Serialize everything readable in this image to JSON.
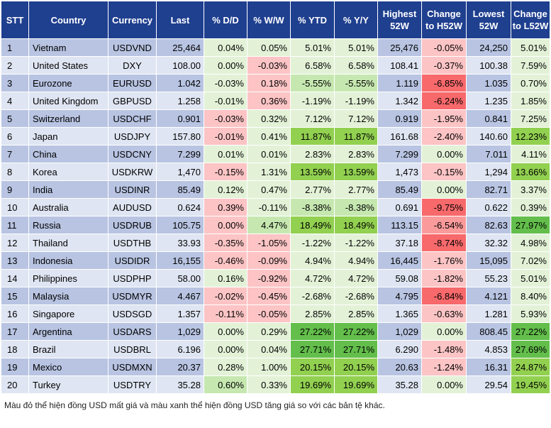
{
  "headers": [
    "STT",
    "Country",
    "Currency",
    "Last",
    "% D/D",
    "% W/W",
    "% YTD",
    "% Y/Y",
    "Highest 52W",
    "Change to H52W",
    "Lowest 52W",
    "Change to L52W"
  ],
  "colors": {
    "header_bg": "#1f3f8f",
    "row_odd": "#b8c4e2",
    "row_even": "#dfe5f2",
    "red_strong": "#f8696b",
    "red_medium": "#fa9a9b",
    "red_light": "#fcc4c5",
    "green_strong": "#63be4b",
    "green_medium": "#92d050",
    "green_light": "#c6e8b0",
    "green_pale": "#e3f2d7"
  },
  "rows": [
    {
      "cells": [
        "1",
        "Vietnam",
        "USDVND",
        "25,464",
        "0.04%",
        "0.05%",
        "5.01%",
        "5.01%",
        "25,476",
        "-0.05%",
        "24,250",
        "5.01%"
      ],
      "hl": {
        "4": "green_pale",
        "5": "green_pale",
        "6": "green_pale",
        "7": "green_pale",
        "9": "red_light",
        "11": "green_pale"
      }
    },
    {
      "cells": [
        "2",
        "United States",
        "DXY",
        "108.00",
        "0.00%",
        "-0.03%",
        "6.58%",
        "6.58%",
        "108.41",
        "-0.37%",
        "100.38",
        "7.59%"
      ],
      "hl": {
        "4": "green_pale",
        "5": "red_light",
        "6": "green_pale",
        "7": "green_pale",
        "9": "red_light",
        "11": "green_pale"
      }
    },
    {
      "cells": [
        "3",
        "Eurozone",
        "EURUSD",
        "1.042",
        "-0.03%",
        "0.18%",
        "-5.55%",
        "-5.55%",
        "1.119",
        "-6.85%",
        "1.035",
        "0.70%"
      ],
      "hl": {
        "4": "green_pale",
        "5": "red_light",
        "6": "green_light",
        "7": "green_light",
        "9": "red_strong",
        "11": "green_pale"
      }
    },
    {
      "cells": [
        "4",
        "United Kingdom",
        "GBPUSD",
        "1.258",
        "-0.01%",
        "0.36%",
        "-1.19%",
        "-1.19%",
        "1.342",
        "-6.24%",
        "1.235",
        "1.85%"
      ],
      "hl": {
        "4": "green_pale",
        "5": "red_light",
        "6": "green_pale",
        "7": "green_pale",
        "9": "red_strong",
        "11": "green_pale"
      }
    },
    {
      "cells": [
        "5",
        "Switzerland",
        "USDCHF",
        "0.901",
        "-0.03%",
        "0.32%",
        "7.12%",
        "7.12%",
        "0.919",
        "-1.95%",
        "0.841",
        "7.25%"
      ],
      "hl": {
        "4": "red_light",
        "5": "green_pale",
        "6": "green_pale",
        "7": "green_pale",
        "9": "red_light",
        "11": "green_pale"
      }
    },
    {
      "cells": [
        "6",
        "Japan",
        "USDJPY",
        "157.80",
        "-0.01%",
        "0.41%",
        "11.87%",
        "11.87%",
        "161.68",
        "-2.40%",
        "140.60",
        "12.23%"
      ],
      "hl": {
        "4": "red_light",
        "5": "green_pale",
        "6": "green_medium",
        "7": "green_medium",
        "9": "red_light",
        "11": "green_medium"
      }
    },
    {
      "cells": [
        "7",
        "China",
        "USDCNY",
        "7.299",
        "0.01%",
        "0.01%",
        "2.83%",
        "2.83%",
        "7.299",
        "0.00%",
        "7.011",
        "4.11%"
      ],
      "hl": {
        "4": "green_pale",
        "5": "green_pale",
        "6": "green_pale",
        "7": "green_pale",
        "9": "green_pale",
        "11": "green_pale"
      }
    },
    {
      "cells": [
        "8",
        "Korea",
        "USDKRW",
        "1,470",
        "-0.15%",
        "1.31%",
        "13.59%",
        "13.59%",
        "1,473",
        "-0.15%",
        "1,294",
        "13.66%"
      ],
      "hl": {
        "4": "red_light",
        "5": "green_pale",
        "6": "green_medium",
        "7": "green_medium",
        "9": "red_light",
        "11": "green_medium"
      }
    },
    {
      "cells": [
        "9",
        "India",
        "USDINR",
        "85.49",
        "0.12%",
        "0.47%",
        "2.77%",
        "2.77%",
        "85.49",
        "0.00%",
        "82.71",
        "3.37%"
      ],
      "hl": {
        "4": "green_pale",
        "5": "green_pale",
        "6": "green_pale",
        "7": "green_pale",
        "9": "green_pale",
        "11": "green_pale"
      }
    },
    {
      "cells": [
        "10",
        "Australia",
        "AUDUSD",
        "0.624",
        "0.39%",
        "-0.11%",
        "-8.38%",
        "-8.38%",
        "0.691",
        "-9.75%",
        "0.622",
        "0.39%"
      ],
      "hl": {
        "4": "red_light",
        "5": "green_pale",
        "6": "green_light",
        "7": "green_light",
        "9": "red_strong",
        "11": "green_pale"
      }
    },
    {
      "cells": [
        "11",
        "Russia",
        "USDRUB",
        "105.75",
        "0.00%",
        "4.47%",
        "18.49%",
        "18.49%",
        "113.15",
        "-6.54%",
        "82.63",
        "27.97%"
      ],
      "hl": {
        "4": "red_light",
        "5": "green_light",
        "6": "green_medium",
        "7": "green_medium",
        "9": "red_medium",
        "11": "green_strong"
      }
    },
    {
      "cells": [
        "12",
        "Thailand",
        "USDTHB",
        "33.93",
        "-0.35%",
        "-1.05%",
        "-1.22%",
        "-1.22%",
        "37.18",
        "-8.74%",
        "32.32",
        "4.98%"
      ],
      "hl": {
        "4": "red_light",
        "5": "red_light",
        "6": "green_pale",
        "7": "green_pale",
        "9": "red_strong",
        "11": "green_pale"
      }
    },
    {
      "cells": [
        "13",
        "Indonesia",
        "USDIDR",
        "16,155",
        "-0.46%",
        "-0.09%",
        "4.94%",
        "4.94%",
        "16,445",
        "-1.76%",
        "15,095",
        "7.02%"
      ],
      "hl": {
        "4": "red_light",
        "5": "red_light",
        "6": "green_pale",
        "7": "green_pale",
        "9": "red_light",
        "11": "green_pale"
      }
    },
    {
      "cells": [
        "14",
        "Philippines",
        "USDPHP",
        "58.00",
        "0.16%",
        "-0.92%",
        "4.72%",
        "4.72%",
        "59.08",
        "-1.82%",
        "55.23",
        "5.01%"
      ],
      "hl": {
        "4": "green_pale",
        "5": "red_light",
        "6": "green_pale",
        "7": "green_pale",
        "9": "red_light",
        "11": "green_pale"
      }
    },
    {
      "cells": [
        "15",
        "Malaysia",
        "USDMYR",
        "4.467",
        "-0.02%",
        "-0.45%",
        "-2.68%",
        "-2.68%",
        "4.795",
        "-6.84%",
        "4.121",
        "8.40%"
      ],
      "hl": {
        "4": "red_light",
        "5": "red_light",
        "6": "green_pale",
        "7": "green_pale",
        "9": "red_strong",
        "11": "green_pale"
      }
    },
    {
      "cells": [
        "16",
        "Singapore",
        "USDSGD",
        "1.357",
        "-0.11%",
        "-0.05%",
        "2.85%",
        "2.85%",
        "1.365",
        "-0.63%",
        "1.281",
        "5.93%"
      ],
      "hl": {
        "4": "red_light",
        "5": "red_light",
        "6": "green_pale",
        "7": "green_pale",
        "9": "red_light",
        "11": "green_pale"
      }
    },
    {
      "cells": [
        "17",
        "Argentina",
        "USDARS",
        "1,029",
        "0.00%",
        "0.29%",
        "27.22%",
        "27.22%",
        "1,029",
        "0.00%",
        "808.45",
        "27.22%"
      ],
      "hl": {
        "4": "green_pale",
        "5": "green_pale",
        "6": "green_strong",
        "7": "green_strong",
        "9": "green_pale",
        "11": "green_strong"
      }
    },
    {
      "cells": [
        "18",
        "Brazil",
        "USDBRL",
        "6.196",
        "0.00%",
        "0.04%",
        "27.71%",
        "27.71%",
        "6.290",
        "-1.48%",
        "4.853",
        "27.69%"
      ],
      "hl": {
        "4": "green_pale",
        "5": "green_pale",
        "6": "green_strong",
        "7": "green_strong",
        "9": "red_light",
        "11": "green_strong"
      }
    },
    {
      "cells": [
        "19",
        "Mexico",
        "USDMXN",
        "20.37",
        "0.28%",
        "1.00%",
        "20.15%",
        "20.15%",
        "20.63",
        "-1.24%",
        "16.31",
        "24.87%"
      ],
      "hl": {
        "4": "green_pale",
        "5": "green_pale",
        "6": "green_medium",
        "7": "green_medium",
        "9": "red_light",
        "11": "green_medium"
      }
    },
    {
      "cells": [
        "20",
        "Turkey",
        "USDTRY",
        "35.28",
        "0.60%",
        "0.33%",
        "19.69%",
        "19.69%",
        "35.28",
        "0.00%",
        "29.54",
        "19.45%"
      ],
      "hl": {
        "4": "green_light",
        "5": "green_pale",
        "6": "green_medium",
        "7": "green_medium",
        "9": "green_pale",
        "11": "green_medium"
      }
    }
  ],
  "footnote": "Màu đỏ thể hiện đồng USD mất giá và màu xanh thể hiện đồng USD tăng giá so với các bản tệ khác."
}
